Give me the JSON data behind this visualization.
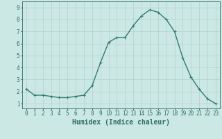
{
  "x": [
    0,
    1,
    2,
    3,
    4,
    5,
    6,
    7,
    8,
    9,
    10,
    11,
    12,
    13,
    14,
    15,
    16,
    17,
    18,
    19,
    20,
    21,
    22,
    23
  ],
  "y": [
    2.2,
    1.7,
    1.7,
    1.6,
    1.5,
    1.5,
    1.6,
    1.7,
    2.5,
    4.4,
    6.1,
    6.5,
    6.5,
    7.5,
    8.3,
    8.8,
    8.6,
    8.0,
    7.0,
    4.8,
    3.2,
    2.2,
    1.4,
    1.0
  ],
  "line_color": "#2e7d6e",
  "marker": "+",
  "marker_size": 3,
  "bg_color": "#cce8e4",
  "grid_color": "#b0d0cc",
  "xlabel": "Humidex (Indice chaleur)",
  "xlim_min": -0.5,
  "xlim_max": 23.5,
  "ylim_min": 0.6,
  "ylim_max": 9.5,
  "yticks": [
    1,
    2,
    3,
    4,
    5,
    6,
    7,
    8,
    9
  ],
  "xticks": [
    0,
    1,
    2,
    3,
    4,
    5,
    6,
    7,
    8,
    9,
    10,
    11,
    12,
    13,
    14,
    15,
    16,
    17,
    18,
    19,
    20,
    21,
    22,
    23
  ],
  "tick_label_size": 5.5,
  "xlabel_size": 7,
  "line_width": 1.0,
  "line_color_hex": "#2e6e62",
  "spine_color": "#2e6e62"
}
